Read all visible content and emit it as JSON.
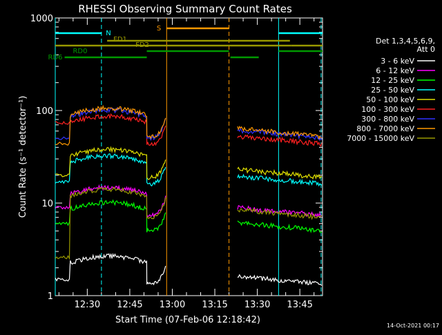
{
  "page": {
    "footer_date": "14-Oct-2021 00:17"
  },
  "chart_data": {
    "type": "line",
    "title": "RHESSI Observing Summary Count Rates",
    "xlabel": "Start Time (07-Feb-06 12:18:42)",
    "ylabel": "Count Rate (s⁻¹ detector⁻¹)",
    "y_scale": "log",
    "ylim": [
      1,
      1000
    ],
    "xlim": [
      "12:18:42",
      "13:53:00"
    ],
    "x_ticks": [
      "12:30",
      "12:45",
      "13:00",
      "13:15",
      "13:30",
      "13:45"
    ],
    "y_ticks": [
      {
        "value": 1,
        "label": "1"
      },
      {
        "value": 10,
        "label": "10"
      },
      {
        "value": 100,
        "label": "100"
      },
      {
        "value": 1000,
        "label": "1000"
      }
    ],
    "legend": {
      "placement": "right",
      "header": [
        "Det 1,3,4,5,6,9,",
        "Att 0"
      ]
    },
    "series": [
      {
        "name": "3 - 6 keV",
        "color": "#ffffff",
        "level": 1.9,
        "pre": 1.5,
        "dip": 0.35
      },
      {
        "name": "6 - 12 keV",
        "color": "#ff00ff",
        "level": 10.5,
        "pre": 9.0,
        "dip": 0.0
      },
      {
        "name": "12 - 25 keV",
        "color": "#00ff00",
        "level": 7.2,
        "pre": 6.0,
        "dip": 0.0
      },
      {
        "name": "25 - 50 keV",
        "color": "#00ffff",
        "level": 23.0,
        "pre": 17.0,
        "dip": 0.1
      },
      {
        "name": "50 - 100 keV",
        "color": "#e0e000",
        "level": 27.0,
        "pre": 20.0,
        "dip": 0.2
      },
      {
        "name": "100 - 300 keV",
        "color": "#ff2020",
        "level": 62.0,
        "pre": 74.0,
        "dip": 0.3
      },
      {
        "name": "300 - 800 keV",
        "color": "#3030ff",
        "level": 72.0,
        "pre": 50.0,
        "dip": 0.05
      },
      {
        "name": "800 - 7000 keV",
        "color": "#ff9900",
        "level": 75.0,
        "pre": 44.0,
        "dip": 0.15
      },
      {
        "name": "7000 - 15000 keV",
        "color": "#999900",
        "level": 10.0,
        "pre": 2.6,
        "dip": 0.1
      }
    ],
    "flag_bars": [
      {
        "label": "N",
        "color": "#00ffff",
        "segments": [
          [
            "12:18:42",
            "12:35:00"
          ],
          [
            "13:37:30",
            "13:53:00"
          ]
        ]
      },
      {
        "label": "S",
        "color": "#ff9900",
        "segments": [
          [
            "12:58:00",
            "13:20:00"
          ]
        ]
      },
      {
        "label": "FD1",
        "color": "#999900",
        "segments": [
          [
            "12:37:00",
            "13:41:30"
          ]
        ]
      },
      {
        "label": "FD2",
        "color": "#999900",
        "segments": [
          [
            "12:18:42",
            "13:42:00"
          ],
          [
            "13:42:00",
            "13:53:00"
          ]
        ]
      },
      {
        "label": "RD0",
        "color": "#009900",
        "segments": [
          [
            "12:51:00",
            "13:20:00"
          ],
          [
            "13:37:30",
            "13:53:00"
          ]
        ]
      },
      {
        "label": "RD6",
        "color": "#009900",
        "segments": [
          [
            "12:22:00",
            "12:51:00"
          ],
          [
            "13:20:30",
            "13:30:30"
          ]
        ]
      }
    ],
    "gaps": [
      [
        "12:58:00",
        "13:22:30"
      ]
    ],
    "markers": [
      {
        "time": "12:18:42",
        "color": "#00ffff",
        "style": "solid"
      },
      {
        "time": "12:35:00",
        "color": "#00ffff",
        "style": "dashed"
      },
      {
        "time": "12:58:00",
        "color": "#ff9900",
        "style": "solid"
      },
      {
        "time": "13:20:00",
        "color": "#ff9900",
        "style": "dashed"
      },
      {
        "time": "13:37:30",
        "color": "#00ffff",
        "style": "solid"
      },
      {
        "time": "13:52:30",
        "color": "#00ffff",
        "style": "dashed"
      }
    ]
  }
}
